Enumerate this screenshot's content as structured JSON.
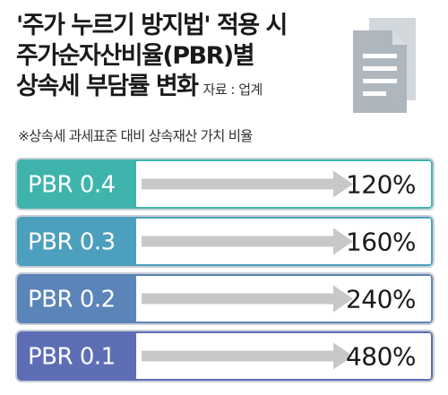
{
  "title_lines": [
    "'주가 누르기 방지법' 적용 시",
    "주가순자산비율(PBR)별",
    "상속세 부담률 변화"
  ],
  "source": "자료 : 업계",
  "note": "※상속세 과세표준 대비 상속재산 가치 비율",
  "icon": "document-icon",
  "colors": {
    "bar_colors": [
      "#3fb4ad",
      "#4c9fbd",
      "#5b84b9",
      "#5d6eb5"
    ],
    "bar_border": "#c9d0d6",
    "arrow": "#c8c8c8",
    "value_bg": "#ffffff"
  },
  "chart_data": {
    "type": "table",
    "categories": [
      "PBR 0.4",
      "PBR 0.3",
      "PBR 0.2",
      "PBR 0.1"
    ],
    "values": [
      "120%",
      "160%",
      "240%",
      "480%"
    ],
    "unit": "%"
  }
}
